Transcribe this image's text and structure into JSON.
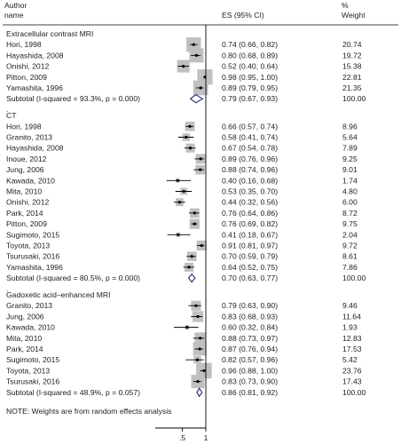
{
  "header": {
    "col1_line1": "Author",
    "col1_line2": "name",
    "col2": "ES (95% CI)",
    "col3_line1": "%",
    "col3_line2": "Weight"
  },
  "note": "NOTE: Weights are from random effects analysis",
  "chart_data": {
    "type": "forest",
    "xaxis": {
      "ticks": [
        0.5,
        1
      ],
      "tick_labels": [
        ".5",
        "1"
      ],
      "range": [
        -0.08,
        1
      ]
    },
    "groups": [
      {
        "title": "Extracellular contrast MRI",
        "studies": [
          {
            "name": "Hori, 1998",
            "es": 0.74,
            "lo": 0.66,
            "hi": 0.82,
            "es_text": "0.74 (0.66, 0.82)",
            "weight": "20.74"
          },
          {
            "name": "Hayashida, 2008",
            "es": 0.8,
            "lo": 0.68,
            "hi": 0.89,
            "es_text": "0.80 (0.68, 0.89)",
            "weight": "19.72"
          },
          {
            "name": "Onishi, 2012",
            "es": 0.52,
            "lo": 0.4,
            "hi": 0.64,
            "es_text": "0.52 (0.40, 0.64)",
            "weight": "15.38"
          },
          {
            "name": "Pitton, 2009",
            "es": 0.98,
            "lo": 0.95,
            "hi": 1.0,
            "es_text": "0.98 (0.95, 1.00)",
            "weight": "22.81"
          },
          {
            "name": "Yamashita, 1996",
            "es": 0.89,
            "lo": 0.79,
            "hi": 0.95,
            "es_text": "0.89 (0.79, 0.95)",
            "weight": "21.35"
          }
        ],
        "subtotal": {
          "label": "Subtotal  (I-squared = 93.3%, p = 0.000)",
          "es": 0.79,
          "lo": 0.67,
          "hi": 0.93,
          "es_text": "0.79 (0.67, 0.93)",
          "weight": "100.00"
        }
      },
      {
        "title": "CT",
        "studies": [
          {
            "name": "Hori, 1998",
            "es": 0.66,
            "lo": 0.57,
            "hi": 0.74,
            "es_text": "0.66 (0.57, 0.74)",
            "weight": "8.96"
          },
          {
            "name": "Granito, 2013",
            "es": 0.58,
            "lo": 0.41,
            "hi": 0.74,
            "es_text": "0.58 (0.41, 0.74)",
            "weight": "5.64"
          },
          {
            "name": "Hayashida, 2008",
            "es": 0.67,
            "lo": 0.54,
            "hi": 0.78,
            "es_text": "0.67 (0.54, 0.78)",
            "weight": "7.89"
          },
          {
            "name": "Inoue, 2012",
            "es": 0.89,
            "lo": 0.76,
            "hi": 0.96,
            "es_text": "0.89 (0.76, 0.96)",
            "weight": "9.25"
          },
          {
            "name": "Jung, 2006",
            "es": 0.88,
            "lo": 0.74,
            "hi": 0.96,
            "es_text": "0.88 (0.74, 0.96)",
            "weight": "9.01"
          },
          {
            "name": "Kawada, 2010",
            "es": 0.4,
            "lo": 0.16,
            "hi": 0.68,
            "es_text": "0.40 (0.16, 0.68)",
            "weight": "1.74"
          },
          {
            "name": "Mita, 2010",
            "es": 0.53,
            "lo": 0.35,
            "hi": 0.7,
            "es_text": "0.53 (0.35, 0.70)",
            "weight": "4.80"
          },
          {
            "name": "Onishi, 2012",
            "es": 0.44,
            "lo": 0.32,
            "hi": 0.56,
            "es_text": "0.44 (0.32, 0.56)",
            "weight": "6.00"
          },
          {
            "name": "Park, 2014",
            "es": 0.76,
            "lo": 0.64,
            "hi": 0.86,
            "es_text": "0.76 (0.64, 0.86)",
            "weight": "8.72"
          },
          {
            "name": "Pitton, 2009",
            "es": 0.76,
            "lo": 0.69,
            "hi": 0.82,
            "es_text": "0.76 (0.69, 0.82)",
            "weight": "9.75"
          },
          {
            "name": "Sugimoto, 2015",
            "es": 0.41,
            "lo": 0.18,
            "hi": 0.67,
            "es_text": "0.41 (0.18, 0.67)",
            "weight": "2.04"
          },
          {
            "name": "Toyota, 2013",
            "es": 0.91,
            "lo": 0.81,
            "hi": 0.97,
            "es_text": "0.91 (0.81, 0.97)",
            "weight": "9.72"
          },
          {
            "name": "Tsurusaki, 2016",
            "es": 0.7,
            "lo": 0.59,
            "hi": 0.79,
            "es_text": "0.70 (0.59, 0.79)",
            "weight": "8.61"
          },
          {
            "name": "Yamashita, 1996",
            "es": 0.64,
            "lo": 0.52,
            "hi": 0.75,
            "es_text": "0.64 (0.52, 0.75)",
            "weight": "7.86"
          }
        ],
        "subtotal": {
          "label": "Subtotal  (I-squared = 80.5%, p = 0.000)",
          "es": 0.7,
          "lo": 0.63,
          "hi": 0.77,
          "es_text": "0.70 (0.63, 0.77)",
          "weight": "100.00"
        }
      },
      {
        "title": "Gadoxetic acid–enhanced MRI",
        "studies": [
          {
            "name": "Granito, 2013",
            "es": 0.79,
            "lo": 0.63,
            "hi": 0.9,
            "es_text": "0.79 (0.63, 0.90)",
            "weight": "9.46"
          },
          {
            "name": "Jung, 2006",
            "es": 0.83,
            "lo": 0.68,
            "hi": 0.93,
            "es_text": "0.83 (0.68, 0.93)",
            "weight": "11.64"
          },
          {
            "name": "Kawada, 2010",
            "es": 0.6,
            "lo": 0.32,
            "hi": 0.84,
            "es_text": "0.60 (0.32, 0.84)",
            "weight": "1.93"
          },
          {
            "name": "Mita, 2010",
            "es": 0.88,
            "lo": 0.73,
            "hi": 0.97,
            "es_text": "0.88 (0.73, 0.97)",
            "weight": "12.83"
          },
          {
            "name": "Park, 2014",
            "es": 0.87,
            "lo": 0.76,
            "hi": 0.94,
            "es_text": "0.87 (0.76, 0.94)",
            "weight": "17.53"
          },
          {
            "name": "Sugimoto, 2015",
            "es": 0.82,
            "lo": 0.57,
            "hi": 0.96,
            "es_text": "0.82 (0.57, 0.96)",
            "weight": "5.42"
          },
          {
            "name": "Toyota, 2013",
            "es": 0.96,
            "lo": 0.88,
            "hi": 1.0,
            "es_text": "0.96 (0.88, 1.00)",
            "weight": "23.76"
          },
          {
            "name": "Tsurusaki, 2016",
            "es": 0.83,
            "lo": 0.73,
            "hi": 0.9,
            "es_text": "0.83 (0.73, 0.90)",
            "weight": "17.43"
          }
        ],
        "subtotal": {
          "label": "Subtotal  (I-squared = 48.9%, p = 0.057)",
          "es": 0.86,
          "lo": 0.81,
          "hi": 0.92,
          "es_text": "0.86 (0.81, 0.92)",
          "weight": "100.00"
        }
      }
    ],
    "colors": {
      "box": "#c0c0c0",
      "point": "#000000",
      "line": "#000000",
      "diamond": "#1f2f7a",
      "axis": "#000000"
    }
  }
}
